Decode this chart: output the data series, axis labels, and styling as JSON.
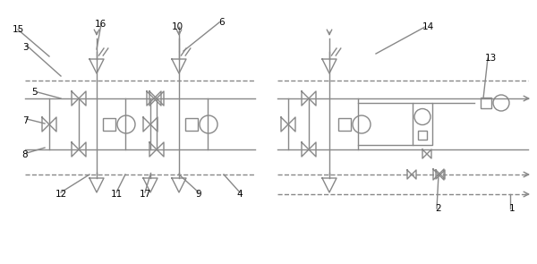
{
  "bg_color": "#ffffff",
  "lc": "#888888",
  "lw": 1.0,
  "figsize": [
    6.0,
    2.95
  ],
  "dpi": 100
}
